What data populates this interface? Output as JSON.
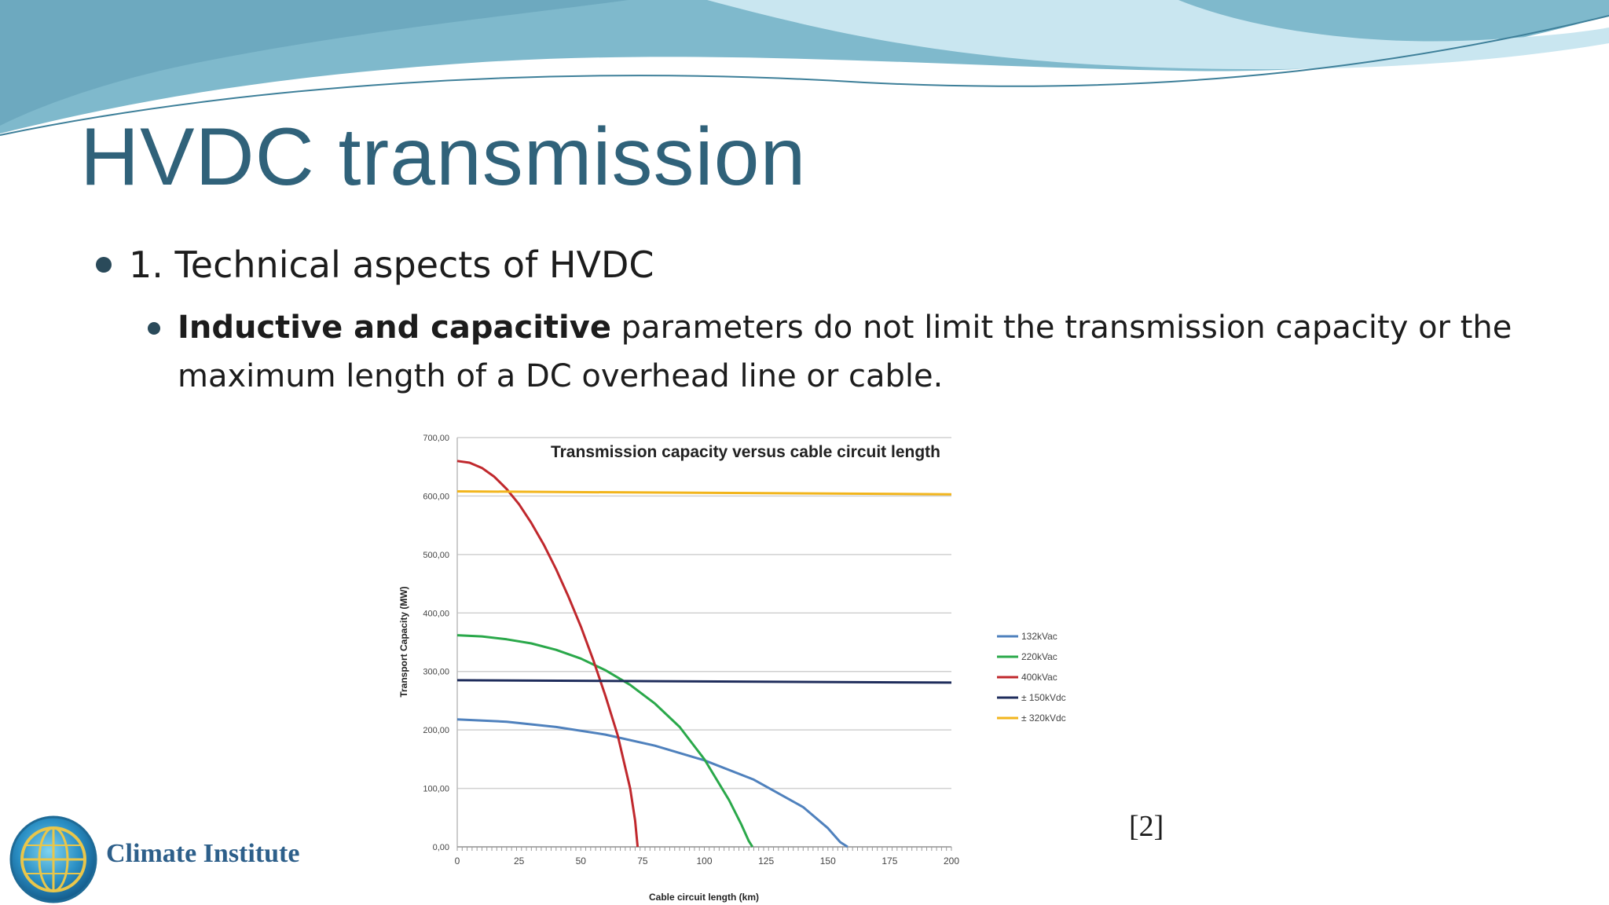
{
  "slide": {
    "title": "HVDC transmission",
    "bullets": [
      {
        "text": "1. Technical aspects of HVDC"
      },
      {
        "bold": "Inductive and capacitive",
        "text": " parameters do not limit the transmission capacity or the maximum length of a DC overhead line or cable."
      }
    ],
    "citation": "[2]",
    "logo_text": "Climate Institute"
  },
  "colors": {
    "title": "#30627a",
    "wave_dark": "#6fa8bf",
    "wave_light": "#a7d3e2"
  },
  "chart_data": {
    "type": "line",
    "title": "Transmission capacity versus cable circuit length",
    "xlabel": "Cable circuit length (km)",
    "ylabel": "Transport Capacity (MW)",
    "xlim": [
      0,
      200
    ],
    "ylim": [
      0,
      700
    ],
    "xticks": [
      "0",
      "25",
      "50",
      "75",
      "100",
      "125",
      "150",
      "175",
      "200"
    ],
    "yticks": [
      "0,00",
      "100,00",
      "200,00",
      "300,00",
      "400,00",
      "500,00",
      "600,00",
      "700,00"
    ],
    "grid": true,
    "legend_position": "right",
    "series": [
      {
        "name": "132kVac",
        "color": "#4f81bd",
        "x": [
          0,
          20,
          40,
          60,
          80,
          100,
          120,
          140,
          150,
          155,
          158
        ],
        "y": [
          218,
          214,
          205,
          192,
          173,
          148,
          115,
          68,
          32,
          8,
          0
        ]
      },
      {
        "name": "220kVac",
        "color": "#2aa84a",
        "x": [
          0,
          10,
          20,
          30,
          40,
          50,
          60,
          70,
          80,
          90,
          100,
          110,
          115,
          118,
          119.5
        ],
        "y": [
          362,
          360,
          355,
          348,
          337,
          322,
          302,
          277,
          245,
          205,
          150,
          80,
          38,
          10,
          0
        ]
      },
      {
        "name": "400kVac",
        "color": "#c0282d",
        "x": [
          0,
          5,
          10,
          15,
          20,
          25,
          30,
          35,
          40,
          45,
          50,
          55,
          60,
          65,
          70,
          72,
          73
        ],
        "y": [
          660,
          657,
          648,
          633,
          612,
          586,
          554,
          517,
          475,
          428,
          377,
          320,
          258,
          190,
          100,
          45,
          0
        ]
      },
      {
        "name": "± 150kVdc",
        "color": "#1f2d5c",
        "x": [
          0,
          200
        ],
        "y": [
          285,
          281
        ]
      },
      {
        "name": "± 320kVdc",
        "color": "#f2b51c",
        "x": [
          0,
          200
        ],
        "y": [
          608,
          603
        ]
      }
    ]
  }
}
